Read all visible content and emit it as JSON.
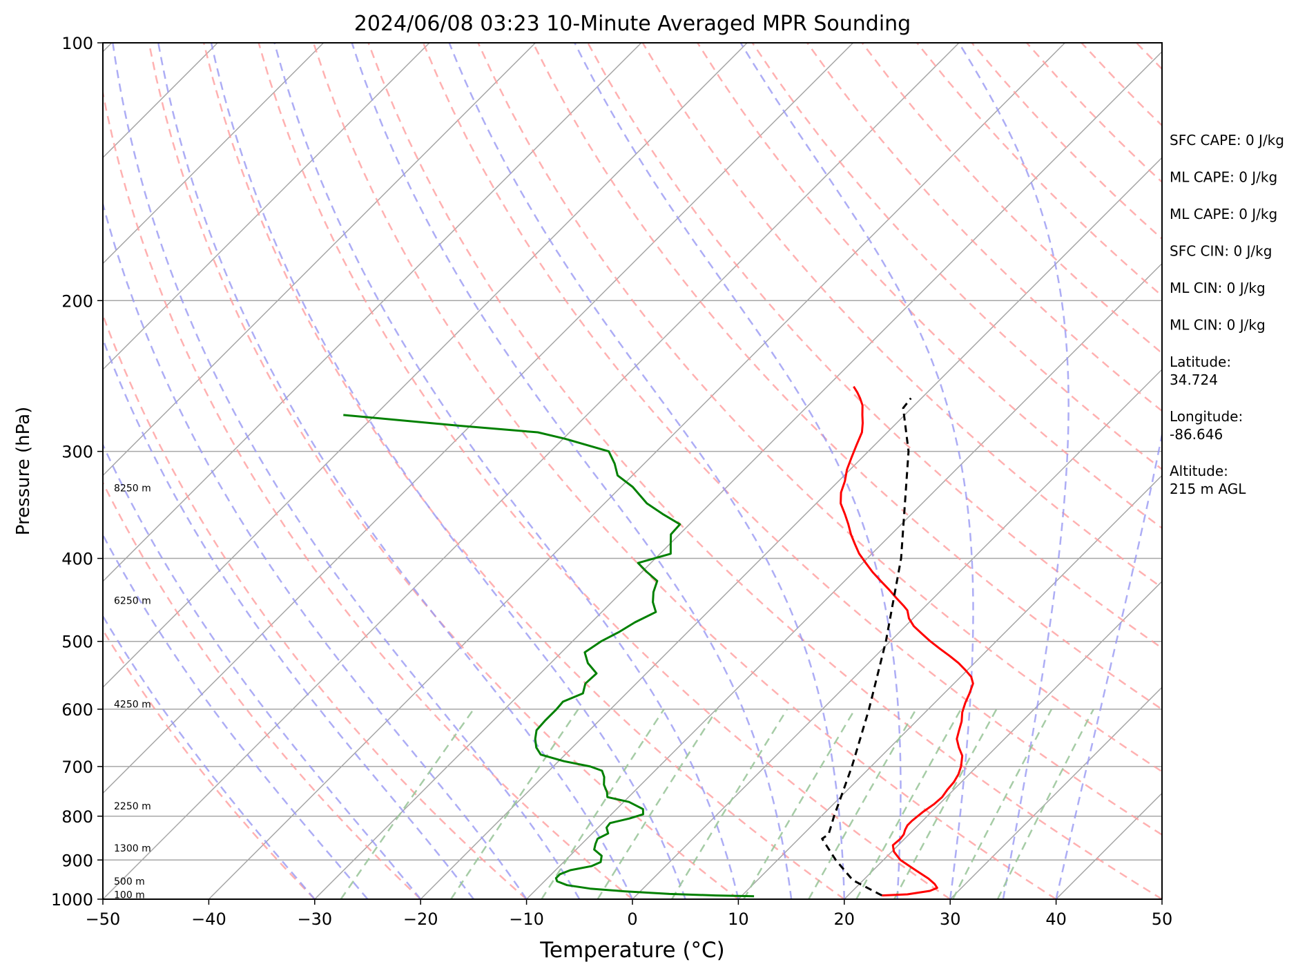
{
  "chart_data": {
    "type": "line",
    "title": "2024/06/08 03:23 10-Minute Averaged MPR Sounding",
    "xlabel": "Temperature (°C)",
    "ylabel": "Pressure (hPa)",
    "xlim": [
      -50,
      50
    ],
    "ylim": [
      1000,
      100
    ],
    "y_scale": "log",
    "x_ticks": [
      -50,
      -40,
      -30,
      -20,
      -10,
      0,
      10,
      20,
      30,
      40,
      50
    ],
    "x_tick_labels": [
      "−50",
      "−40",
      "−30",
      "−20",
      "−10",
      "0",
      "10",
      "20",
      "30",
      "40",
      "50"
    ],
    "y_ticks": [
      100,
      200,
      300,
      400,
      500,
      600,
      700,
      800,
      900,
      1000
    ],
    "y_tick_labels": [
      "100",
      "200",
      "300",
      "400",
      "500",
      "600",
      "700",
      "800",
      "900",
      "1000"
    ],
    "grid": true,
    "skew_x": true,
    "series": [
      {
        "color": "#ff0000",
        "style": "solid",
        "points": [
          [
            23.2,
            990
          ],
          [
            25.5,
            987
          ],
          [
            27.3,
            978
          ],
          [
            27.7,
            970
          ],
          [
            27.1,
            960
          ],
          [
            26.0,
            946
          ],
          [
            24.0,
            925
          ],
          [
            21.6,
            900
          ],
          [
            20.2,
            880
          ],
          [
            19.5,
            865
          ],
          [
            19.6,
            850
          ],
          [
            19.5,
            840
          ],
          [
            19.2,
            830
          ],
          [
            19.0,
            820
          ],
          [
            19.0,
            810
          ],
          [
            19.2,
            790
          ],
          [
            19.5,
            775
          ],
          [
            19.6,
            760
          ],
          [
            19.4,
            745
          ],
          [
            19.3,
            730
          ],
          [
            19.0,
            715
          ],
          [
            18.5,
            700
          ],
          [
            17.6,
            680
          ],
          [
            16.5,
            665
          ],
          [
            15.5,
            650
          ],
          [
            14.9,
            635
          ],
          [
            14.3,
            620
          ],
          [
            13.5,
            605
          ],
          [
            12.9,
            590
          ],
          [
            12.4,
            575
          ],
          [
            11.8,
            560
          ],
          [
            11.0,
            550
          ],
          [
            9.8,
            540
          ],
          [
            8.5,
            530
          ],
          [
            7.0,
            520
          ],
          [
            5.4,
            510
          ],
          [
            3.8,
            500
          ],
          [
            2.3,
            490
          ],
          [
            0.8,
            480
          ],
          [
            -0.4,
            470
          ],
          [
            -1.3,
            460
          ],
          [
            -2.0,
            455
          ],
          [
            -3.5,
            445
          ],
          [
            -5.0,
            435
          ],
          [
            -6.6,
            425
          ],
          [
            -8.2,
            415
          ],
          [
            -9.7,
            405
          ],
          [
            -11.2,
            395
          ],
          [
            -12.5,
            385
          ],
          [
            -13.8,
            375
          ],
          [
            -15.0,
            365
          ],
          [
            -16.3,
            355
          ],
          [
            -17.7,
            345
          ],
          [
            -18.7,
            335
          ],
          [
            -19.4,
            325
          ],
          [
            -20.3,
            315
          ],
          [
            -21.0,
            305
          ],
          [
            -21.7,
            295
          ],
          [
            -22.4,
            285
          ],
          [
            -23.2,
            278
          ],
          [
            -24.0,
            272
          ],
          [
            -24.9,
            265
          ],
          [
            -25.8,
            260
          ],
          [
            -26.6,
            256
          ],
          [
            -27.5,
            252
          ]
        ]
      },
      {
        "color": "#008000",
        "style": "solid",
        "points": [
          [
            11.2,
            992
          ],
          [
            7.5,
            990
          ],
          [
            3.0,
            986
          ],
          [
            -1.5,
            979
          ],
          [
            -5.0,
            972
          ],
          [
            -7.5,
            963
          ],
          [
            -8.8,
            953
          ],
          [
            -9.2,
            945
          ],
          [
            -9.2,
            935
          ],
          [
            -8.6,
            925
          ],
          [
            -7.0,
            915
          ],
          [
            -6.5,
            905
          ],
          [
            -7.0,
            890
          ],
          [
            -8.3,
            875
          ],
          [
            -8.7,
            862
          ],
          [
            -9.0,
            850
          ],
          [
            -8.5,
            838
          ],
          [
            -9.2,
            825
          ],
          [
            -9.3,
            815
          ],
          [
            -7.9,
            805
          ],
          [
            -7.0,
            796
          ],
          [
            -7.5,
            785
          ],
          [
            -9.5,
            770
          ],
          [
            -12.0,
            760
          ],
          [
            -12.5,
            750
          ],
          [
            -13.5,
            735
          ],
          [
            -14.2,
            720
          ],
          [
            -15.0,
            708
          ],
          [
            -16.5,
            700
          ],
          [
            -19.5,
            690
          ],
          [
            -22.3,
            678
          ],
          [
            -23.4,
            665
          ],
          [
            -24.3,
            650
          ],
          [
            -25.0,
            635
          ],
          [
            -25.1,
            618
          ],
          [
            -25.1,
            600
          ],
          [
            -25.2,
            588
          ],
          [
            -24.1,
            575
          ],
          [
            -24.8,
            560
          ],
          [
            -24.7,
            545
          ],
          [
            -26.5,
            530
          ],
          [
            -27.8,
            515
          ],
          [
            -27.3,
            500
          ],
          [
            -26.5,
            488
          ],
          [
            -25.9,
            475
          ],
          [
            -24.9,
            462
          ],
          [
            -26.1,
            450
          ],
          [
            -27.0,
            438
          ],
          [
            -27.7,
            425
          ],
          [
            -29.5,
            415
          ],
          [
            -31.2,
            405
          ],
          [
            -29.0,
            395
          ],
          [
            -29.9,
            385
          ],
          [
            -30.8,
            375
          ],
          [
            -30.9,
            365
          ],
          [
            -33.5,
            355
          ],
          [
            -36.0,
            345
          ],
          [
            -38.9,
            330
          ],
          [
            -41.4,
            320
          ],
          [
            -42.8,
            310
          ],
          [
            -44.5,
            300
          ],
          [
            -49.8,
            290
          ],
          [
            -53.0,
            285
          ],
          [
            -61.0,
            280
          ],
          [
            -73.0,
            272
          ]
        ]
      },
      {
        "color": "#000000",
        "style": "dashed",
        "points": [
          [
            23.2,
            990
          ],
          [
            19.0,
            950
          ],
          [
            15.5,
            900
          ],
          [
            12.2,
            850
          ],
          [
            12.4,
            840
          ],
          [
            11.2,
            800
          ],
          [
            8.2,
            700
          ],
          [
            4.4,
            600
          ],
          [
            -0.4,
            500
          ],
          [
            -6.8,
            400
          ],
          [
            -16.2,
            300
          ],
          [
            -20.8,
            267
          ],
          [
            -21.0,
            260
          ]
        ]
      }
    ],
    "height_labels": [
      {
        "p": 331,
        "text": "8250 m"
      },
      {
        "p": 448,
        "text": "6250 m"
      },
      {
        "p": 592,
        "text": "4250 m"
      },
      {
        "p": 778,
        "text": "2250 m"
      },
      {
        "p": 872,
        "text": "1300 m"
      },
      {
        "p": 953,
        "text": "500 m"
      },
      {
        "p": 988,
        "text": "100 m"
      }
    ],
    "annotations": [
      {
        "text": "SFC CAPE: 0 J/kg"
      },
      {
        "text": "ML CAPE: 0 J/kg"
      },
      {
        "text": "ML CAPE: 0 J/kg"
      },
      {
        "text": "SFC CIN: 0 J/kg"
      },
      {
        "text": "ML CIN: 0 J/kg"
      },
      {
        "text": "ML CIN: 0 J/kg"
      },
      {
        "text": "Latitude:\n34.724"
      },
      {
        "text": "Longitude:\n-86.646"
      },
      {
        "text": "Altitude:\n215 m AGL"
      }
    ]
  },
  "colors": {
    "isotherm": "#a6a6a6",
    "dry_adiabat": "#ff9e9e",
    "moist_adiabat": "#9898f2",
    "mixing_ratio": "#9cc79c",
    "temperature": "#ff0000",
    "dewpoint": "#008000",
    "parcel": "#000000"
  }
}
